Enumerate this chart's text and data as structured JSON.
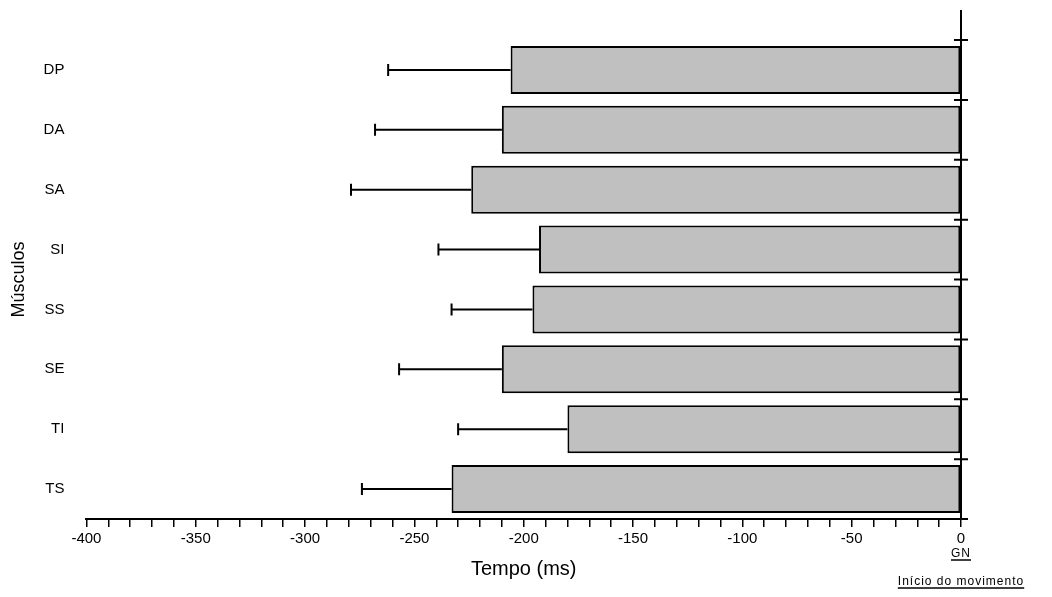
{
  "chart_data": {
    "type": "bar",
    "orientation": "horizontal",
    "xlabel": "Tempo (ms)",
    "ylabel": "Músculos",
    "categories": [
      "DP",
      "DA",
      "SA",
      "SI",
      "SS",
      "SE",
      "TI",
      "TS"
    ],
    "values": [
      -206,
      -210,
      -224,
      -193,
      -196,
      -210,
      -180,
      -233
    ],
    "errors": [
      [
        -262,
        -206
      ],
      [
        -268,
        -210
      ],
      [
        -279,
        -224
      ],
      [
        -239,
        -193
      ],
      [
        -233,
        -196
      ],
      [
        -257,
        -210
      ],
      [
        -230,
        -180
      ],
      [
        -274,
        -233
      ]
    ],
    "color": "#c0c0c0",
    "xlim": [
      -400,
      0
    ],
    "xticks": [
      -400,
      {
        "value": -390,
        "label": null
      },
      {
        "value": -380,
        "label": null
      },
      {
        "value": -370,
        "label": null
      },
      {
        "value": -360,
        "label": null
      },
      -350,
      {
        "value": -340,
        "label": null
      },
      {
        "value": -330,
        "label": null
      },
      {
        "value": -320,
        "label": null
      },
      {
        "value": -310,
        "label": null
      },
      -300,
      {
        "value": -290,
        "label": null
      },
      {
        "value": -280,
        "label": null
      },
      {
        "value": -270,
        "label": null
      },
      {
        "value": -260,
        "label": null
      },
      -250,
      {
        "value": -240,
        "label": null
      },
      {
        "value": -230,
        "label": null
      },
      {
        "value": -220,
        "label": null
      },
      {
        "value": -210,
        "label": null
      },
      -200,
      {
        "value": -190,
        "label": null
      },
      {
        "value": -180,
        "label": null
      },
      {
        "value": -170,
        "label": null
      },
      {
        "value": -160,
        "label": null
      },
      -150,
      {
        "value": -140,
        "label": null
      },
      {
        "value": -130,
        "label": null
      },
      {
        "value": -120,
        "label": null
      },
      {
        "value": -110,
        "label": null
      },
      -100,
      {
        "value": -90,
        "label": null
      },
      {
        "value": -80,
        "label": null
      },
      {
        "value": -70,
        "label": null
      },
      {
        "value": -60,
        "label": null
      },
      -50,
      {
        "value": -40,
        "label": null
      },
      {
        "value": -30,
        "label": null
      },
      {
        "value": -20,
        "label": null
      },
      {
        "value": -10,
        "label": null
      },
      0
    ],
    "annotations": [
      "GN",
      "Início do movimento"
    ],
    "grid": false,
    "legend": false
  }
}
